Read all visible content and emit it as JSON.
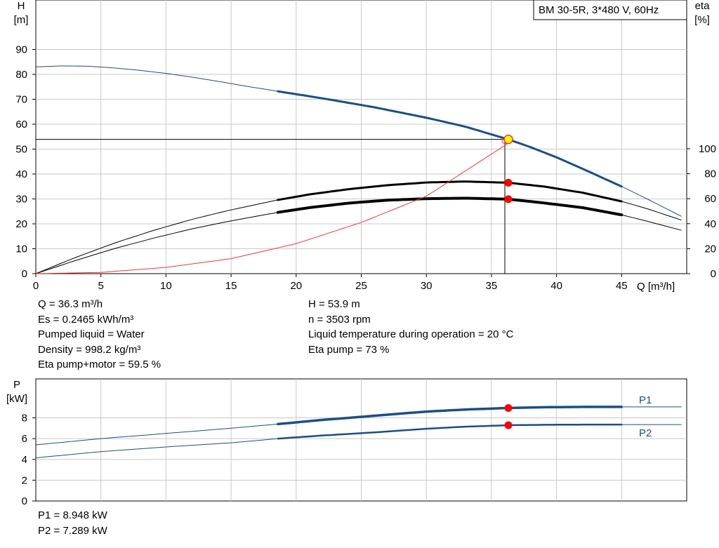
{
  "chart_data": [
    {
      "type": "line",
      "title": "BM 30-5R, 3*480 V, 60Hz",
      "xlabel": "Q [m³/h]",
      "ylabel_left": [
        "H",
        "[m]"
      ],
      "ylabel_right": [
        "eta",
        "[%]"
      ],
      "xlim": [
        0,
        50
      ],
      "ylim_left": [
        0,
        100
      ],
      "ylim_right": [
        0,
        100
      ],
      "x_ticks": [
        0,
        5,
        10,
        15,
        20,
        25,
        30,
        35,
        40,
        45
      ],
      "y_ticks_left": [
        0,
        10,
        20,
        30,
        40,
        50,
        60,
        70,
        80,
        90
      ],
      "y_ticks_right": [
        0,
        20,
        40,
        60,
        80,
        100
      ],
      "grid": true,
      "series": [
        {
          "color": "#1a4f86",
          "x": [
            0,
            2,
            4,
            6,
            8,
            10,
            12,
            14,
            16,
            18.6,
            22,
            26,
            30,
            33,
            36.3,
            38,
            40,
            42,
            45,
            47,
            49.6
          ],
          "values": [
            83,
            83.4,
            83.3,
            82.6,
            81.6,
            80.4,
            78.9,
            77.2,
            75.4,
            73.2,
            70.4,
            66.8,
            62.6,
            59.0,
            53.9,
            50.8,
            46.7,
            42.1,
            35.0,
            29.9,
            23.0
          ],
          "bold_range": [
            18.6,
            45
          ]
        },
        {
          "color": "#000000",
          "x": [
            0,
            3,
            6,
            9,
            12,
            15,
            18.6,
            21,
            24,
            27,
            30,
            33,
            36.3,
            39,
            42,
            45,
            47,
            49.6
          ],
          "values": [
            0,
            6.4,
            12.2,
            17.3,
            21.8,
            25.6,
            29.6,
            31.8,
            33.9,
            35.5,
            36.6,
            37.0,
            36.5,
            35.0,
            32.5,
            29.0,
            26.0,
            21.5
          ],
          "bold_range": [
            18.6,
            45
          ]
        },
        {
          "color": "#000000",
          "x": [
            0,
            3,
            6,
            9,
            12,
            15,
            18.6,
            21,
            24,
            27,
            30,
            33,
            36.3,
            39,
            42,
            45,
            47,
            49.6
          ],
          "values": [
            0,
            5.2,
            10.0,
            14.2,
            18.0,
            21.2,
            24.6,
            26.5,
            28.3,
            29.5,
            30.1,
            30.3,
            29.9,
            28.4,
            26.5,
            23.6,
            21.0,
            17.4
          ],
          "bold_range": [
            18.6,
            45
          ],
          "bold_width": 4
        },
        {
          "color": "#ff3333",
          "axis": "right",
          "x": [
            0,
            5,
            10,
            15,
            20,
            25,
            30,
            36.3
          ],
          "values": [
            0,
            1.0,
            5.0,
            12.0,
            24.0,
            41.0,
            62.0,
            104.5
          ],
          "bold_range": []
        }
      ],
      "operating_point": {
        "x": 36.3,
        "y": 53.9,
        "markers_y": [
          36.5,
          29.9
        ]
      }
    },
    {
      "type": "line",
      "ylabel": [
        "P",
        "[kW]"
      ],
      "xlim": [
        0,
        50
      ],
      "ylim": [
        0,
        10
      ],
      "y_ticks": [
        0,
        2,
        4,
        6,
        8
      ],
      "grid": true,
      "series": [
        {
          "name": "P1",
          "color": "#1a4f86",
          "x": [
            0,
            5,
            10,
            15,
            18.6,
            22,
            26,
            30,
            33,
            36.3,
            39,
            42,
            45,
            49.6
          ],
          "values": [
            5.4,
            6.0,
            6.5,
            7.0,
            7.4,
            7.8,
            8.2,
            8.6,
            8.8,
            8.95,
            9.02,
            9.05,
            9.05,
            9.05
          ],
          "bold_range": [
            18.6,
            45
          ]
        },
        {
          "name": "P2",
          "color": "#1a4f86",
          "x": [
            0,
            5,
            10,
            15,
            18.6,
            22,
            26,
            30,
            33,
            36.3,
            39,
            42,
            45,
            49.6
          ],
          "values": [
            4.15,
            4.75,
            5.2,
            5.6,
            6.0,
            6.3,
            6.6,
            6.95,
            7.15,
            7.29,
            7.33,
            7.35,
            7.35,
            7.35
          ],
          "bold_range": [
            18.6,
            45
          ]
        }
      ],
      "operating_point": {
        "x": 36.3,
        "markers_y": [
          8.948,
          7.289
        ]
      }
    }
  ],
  "info_left": [
    "Q = 36.3 m³/h",
    "Es = 0.2465 kWh/m³",
    "Pumped liquid = Water",
    "Density = 998.2 kg/m³",
    "Eta pump+motor = 59.5 %"
  ],
  "info_right": [
    "H = 53.9 m",
    "n = 3503 rpm",
    "Liquid temperature during operation = 20 °C",
    "Eta pump = 73 %"
  ],
  "power_info": [
    "P1 = 8.948 kW",
    "P2 = 7.289 kW"
  ]
}
